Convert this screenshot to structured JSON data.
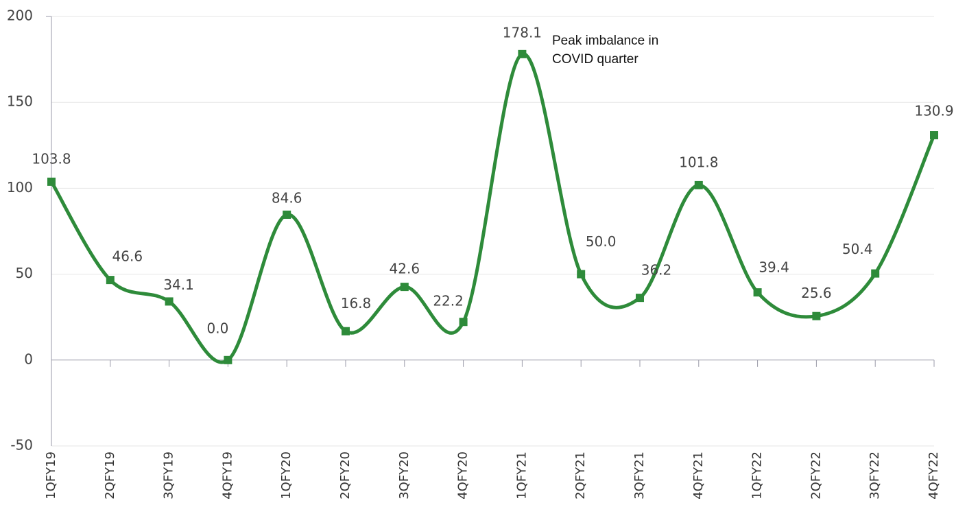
{
  "chart_data": {
    "type": "line",
    "categories": [
      "1QFY19",
      "2QFY19",
      "3QFY19",
      "4QFY19",
      "1QFY20",
      "2QFY20",
      "3QFY20",
      "4QFY20",
      "1QFY21",
      "2QFY21",
      "3QFY21",
      "4QFY21",
      "1QFY22",
      "2QFY22",
      "3QFY22",
      "4QFY22"
    ],
    "values": [
      103.8,
      46.6,
      34.1,
      0,
      84.6,
      16.8,
      42.6,
      22.2,
      178.1,
      50,
      36.2,
      101.8,
      39.4,
      25.6,
      50.4,
      130.9
    ],
    "value_labels": [
      "103.8",
      "46.6",
      "34.1",
      "0.0",
      "84.6",
      "16.8",
      "42.6",
      "22.2",
      "178.1",
      "50.0",
      "36.2",
      "101.8",
      "39.4",
      "25.6",
      "50.4",
      "130.9"
    ],
    "color": "#2e8b3a",
    "ylim": [
      -50,
      200
    ],
    "yticks": [
      -50,
      0,
      50,
      100,
      150,
      200
    ],
    "grid": true,
    "annotation": [
      "Peak imbalance in",
      "COVID quarter"
    ]
  }
}
